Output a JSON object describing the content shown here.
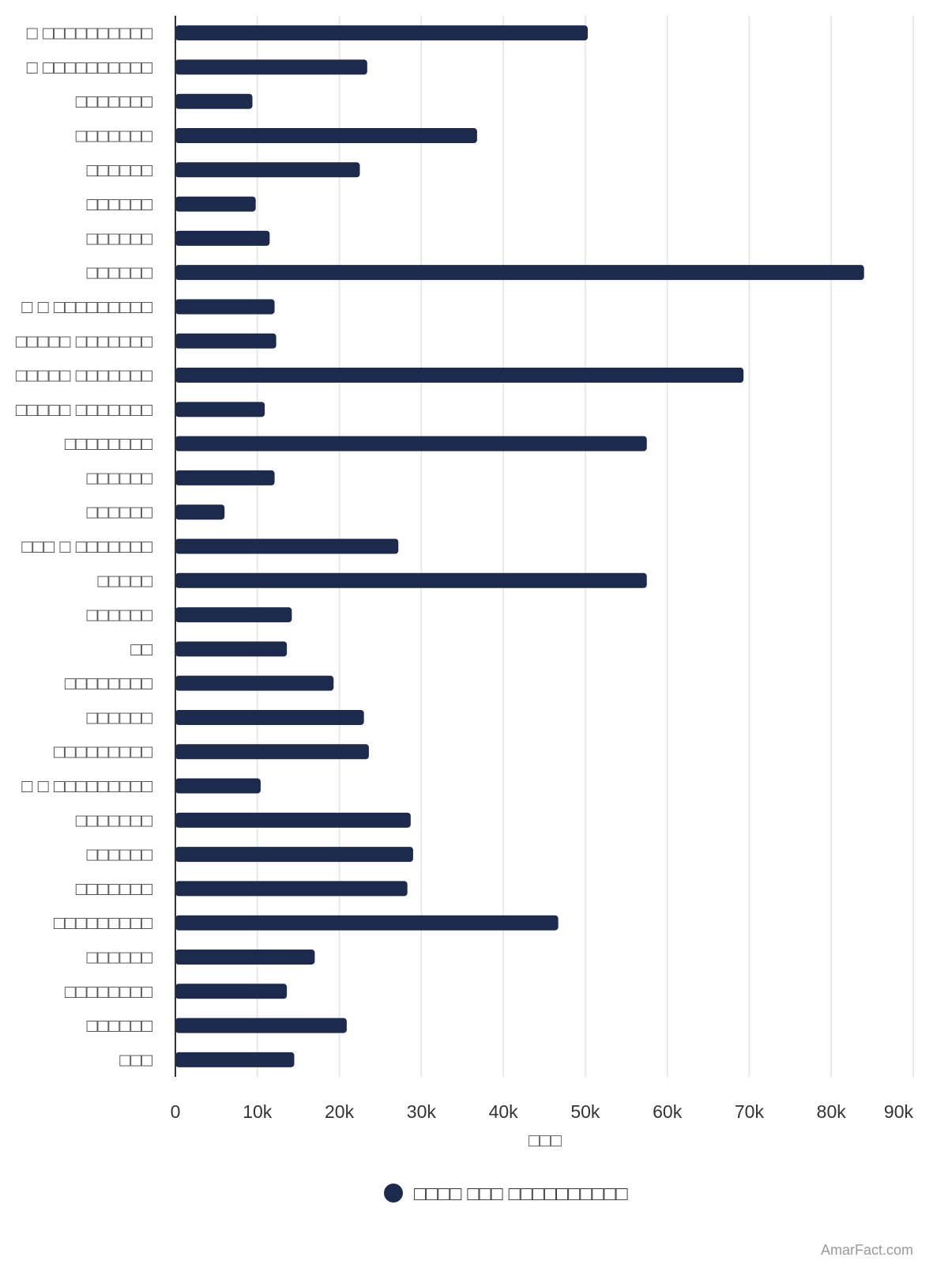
{
  "chart_data": {
    "type": "bar",
    "orientation": "horizontal",
    "categories": [
      "□ □□□□□□□□□□",
      "□ □□□□□□□□□□",
      "□□□□□□□",
      "□□□□□□□",
      "□□□□□□",
      "□□□□□□",
      "□□□□□□",
      "□□□□□□",
      "□ □ □□□□□□□□□",
      "□□□□□ □□□□□□□",
      "□□□□□ □□□□□□□",
      "□□□□□ □□□□□□□",
      "□□□□□□□□",
      "□□□□□□",
      "□□□□□□",
      "□□□ □ □□□□□□□",
      "□□□□□",
      "□□□□□□",
      "□□",
      "□□□□□□□□",
      "□□□□□□",
      "□□□□□□□□□",
      "□ □ □□□□□□□□□",
      "□□□□□□□",
      "□□□□□□",
      "□□□□□□□",
      "□□□□□□□□□",
      "□□□□□□",
      "□□□□□□□□",
      "□□□□□□",
      "□□□"
    ],
    "series": [
      {
        "name": "□□□□ □□□ □□□□□□□□□□",
        "values": [
          50300,
          23400,
          9400,
          36800,
          22500,
          9800,
          11500,
          84000,
          12100,
          12300,
          69300,
          10900,
          57500,
          12100,
          6000,
          27200,
          57500,
          14200,
          13600,
          19300,
          23000,
          23600,
          10400,
          28700,
          29000,
          28300,
          46700,
          17000,
          13600,
          20900,
          14500
        ]
      }
    ],
    "xlabel": "□□□",
    "xlim": [
      0,
      90000
    ],
    "ticks": [
      "0",
      "10k",
      "20k",
      "30k",
      "40k",
      "50k",
      "60k",
      "70k",
      "80k",
      "90k"
    ],
    "grid": true,
    "legend_position": "bottom-center",
    "colors": {
      "bar": "#1c2a4d",
      "grid": "#e3e3e3",
      "axis": "#333333"
    }
  },
  "credit": "AmarFact.com"
}
